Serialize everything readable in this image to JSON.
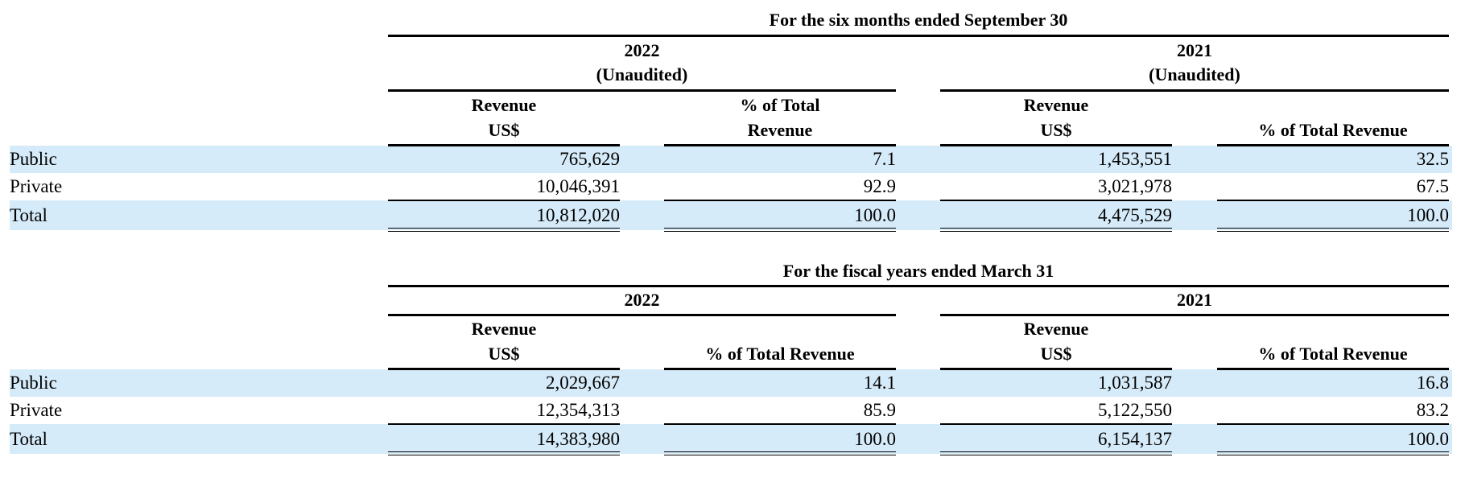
{
  "tables": [
    {
      "title": "For the six months ended September 30",
      "years": [
        {
          "year": "2022",
          "note": "(Unaudited)"
        },
        {
          "year": "2021",
          "note": "(Unaudited)"
        }
      ],
      "col_headers": [
        [
          "Revenue",
          "US$"
        ],
        [
          "% of Total",
          "Revenue"
        ],
        [
          "Revenue",
          "US$"
        ],
        [
          "",
          "% of Total Revenue"
        ]
      ],
      "rows": [
        {
          "label": "Public",
          "values": [
            "765,629",
            "7.1",
            "1,453,551",
            "32.5"
          ]
        },
        {
          "label": "Private",
          "values": [
            "10,046,391",
            "92.9",
            "3,021,978",
            "67.5"
          ]
        },
        {
          "label": "Total",
          "values": [
            "10,812,020",
            "100.0",
            "4,475,529",
            "100.0"
          ]
        }
      ]
    },
    {
      "title": "For the fiscal years ended March 31",
      "years": [
        {
          "year": "2022",
          "note": ""
        },
        {
          "year": "2021",
          "note": ""
        }
      ],
      "col_headers": [
        [
          "Revenue",
          "US$"
        ],
        [
          "",
          "% of Total Revenue"
        ],
        [
          "Revenue",
          "US$"
        ],
        [
          "",
          "% of Total Revenue"
        ]
      ],
      "rows": [
        {
          "label": "Public",
          "values": [
            "2,029,667",
            "14.1",
            "1,031,587",
            "16.8"
          ]
        },
        {
          "label": "Private",
          "values": [
            "12,354,313",
            "85.9",
            "5,122,550",
            "83.2"
          ]
        },
        {
          "label": "Total",
          "values": [
            "14,383,980",
            "100.0",
            "6,154,137",
            "100.0"
          ]
        }
      ]
    }
  ],
  "colors": {
    "row_shade": "#d6ebf9",
    "rule": "#000000"
  }
}
